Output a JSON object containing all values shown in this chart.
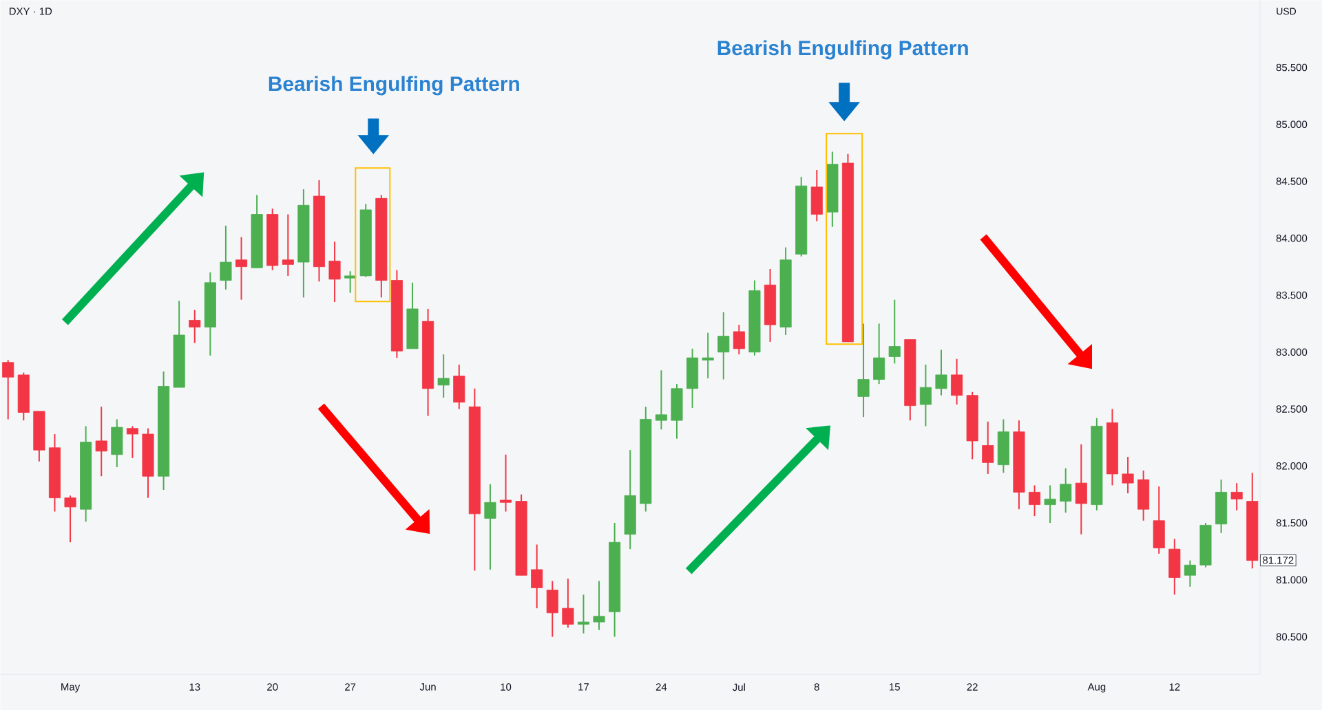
{
  "chart_data": {
    "type": "candlestick",
    "title": "DXY · 1D",
    "categories": [
      null,
      null,
      null,
      null,
      "May",
      null,
      null,
      null,
      null,
      null,
      null,
      null,
      "13",
      null,
      null,
      null,
      null,
      "20",
      null,
      null,
      null,
      null,
      "27",
      null,
      null,
      null,
      null,
      "Jun",
      null,
      null,
      null,
      null,
      "10",
      null,
      null,
      null,
      null,
      "17",
      null,
      null,
      null,
      null,
      "24",
      null,
      null,
      null,
      null,
      "Jul",
      null,
      null,
      null,
      null,
      "8",
      null,
      null,
      null,
      null,
      "15",
      null,
      null,
      null,
      null,
      "22",
      null,
      null,
      null,
      null,
      null,
      null,
      null,
      "Aug",
      null,
      null,
      null,
      null,
      "12",
      null,
      null,
      null,
      null,
      null
    ],
    "ohlc": [
      [
        82.91,
        82.93,
        82.41,
        82.78
      ],
      [
        82.8,
        82.82,
        82.4,
        82.47
      ],
      [
        82.48,
        82.48,
        82.04,
        82.14
      ],
      [
        82.16,
        82.28,
        81.6,
        81.72
      ],
      [
        81.72,
        81.74,
        81.33,
        81.64
      ],
      [
        81.62,
        82.35,
        81.51,
        82.21
      ],
      [
        82.22,
        82.52,
        81.91,
        82.13
      ],
      [
        82.1,
        82.41,
        81.99,
        82.34
      ],
      [
        82.33,
        82.35,
        82.07,
        82.28
      ],
      [
        82.28,
        82.33,
        81.72,
        81.91
      ],
      [
        81.91,
        82.83,
        81.79,
        82.7
      ],
      [
        82.69,
        83.45,
        82.69,
        83.15
      ],
      [
        83.28,
        83.37,
        83.08,
        83.22
      ],
      [
        83.22,
        83.7,
        82.97,
        83.61
      ],
      [
        83.63,
        84.11,
        83.55,
        83.79
      ],
      [
        83.81,
        84.01,
        83.46,
        83.75
      ],
      [
        83.74,
        84.38,
        83.74,
        84.21
      ],
      [
        84.21,
        84.26,
        83.72,
        83.76
      ],
      [
        83.81,
        84.21,
        83.67,
        83.77
      ],
      [
        83.79,
        84.43,
        83.48,
        84.29
      ],
      [
        84.37,
        84.51,
        83.62,
        83.75
      ],
      [
        83.8,
        83.97,
        83.44,
        83.64
      ],
      [
        83.65,
        83.71,
        83.52,
        83.67
      ],
      [
        83.67,
        84.3,
        83.66,
        84.25
      ],
      [
        84.35,
        84.38,
        83.48,
        83.63
      ],
      [
        83.63,
        83.72,
        82.95,
        83.01
      ],
      [
        83.03,
        83.61,
        83.03,
        83.38
      ],
      [
        83.27,
        83.38,
        82.44,
        82.68
      ],
      [
        82.71,
        82.98,
        82.6,
        82.77
      ],
      [
        82.79,
        82.89,
        82.5,
        82.56
      ],
      [
        82.52,
        82.68,
        81.08,
        81.58
      ],
      [
        81.54,
        81.84,
        81.09,
        81.68
      ],
      [
        81.7,
        82.1,
        81.6,
        81.68
      ],
      [
        81.69,
        81.75,
        81.04,
        81.04
      ],
      [
        81.09,
        81.31,
        80.75,
        80.93
      ],
      [
        80.91,
        80.99,
        80.5,
        80.71
      ],
      [
        80.75,
        81.01,
        80.58,
        80.61
      ],
      [
        80.61,
        80.87,
        80.53,
        80.63
      ],
      [
        80.63,
        80.99,
        80.56,
        80.68
      ],
      [
        80.72,
        81.5,
        80.5,
        81.33
      ],
      [
        81.4,
        82.14,
        81.27,
        81.74
      ],
      [
        81.67,
        82.52,
        81.6,
        82.41
      ],
      [
        82.4,
        82.84,
        82.32,
        82.45
      ],
      [
        82.4,
        82.72,
        82.24,
        82.68
      ],
      [
        82.68,
        83.03,
        82.51,
        82.95
      ],
      [
        82.93,
        83.17,
        82.77,
        82.95
      ],
      [
        83.0,
        83.35,
        82.76,
        83.14
      ],
      [
        83.18,
        83.24,
        82.98,
        83.03
      ],
      [
        83.0,
        83.63,
        82.97,
        83.54
      ],
      [
        83.59,
        83.73,
        83.09,
        83.24
      ],
      [
        83.22,
        83.92,
        83.15,
        83.81
      ],
      [
        83.86,
        84.54,
        83.84,
        84.46
      ],
      [
        84.45,
        84.6,
        84.15,
        84.21
      ],
      [
        84.23,
        84.76,
        84.1,
        84.65
      ],
      [
        84.66,
        84.74,
        83.09,
        83.09
      ],
      [
        82.61,
        83.25,
        82.43,
        82.76
      ],
      [
        82.76,
        83.25,
        82.72,
        82.95
      ],
      [
        82.96,
        83.46,
        82.9,
        83.05
      ],
      [
        83.11,
        83.11,
        82.4,
        82.53
      ],
      [
        82.54,
        82.89,
        82.35,
        82.69
      ],
      [
        82.68,
        83.02,
        82.62,
        82.8
      ],
      [
        82.8,
        82.94,
        82.54,
        82.62
      ],
      [
        82.62,
        82.65,
        82.06,
        82.22
      ],
      [
        82.18,
        82.39,
        81.93,
        82.03
      ],
      [
        82.01,
        82.41,
        81.94,
        82.3
      ],
      [
        82.3,
        82.4,
        81.62,
        81.77
      ],
      [
        81.77,
        81.83,
        81.56,
        81.66
      ],
      [
        81.66,
        81.83,
        81.5,
        81.71
      ],
      [
        81.69,
        81.98,
        81.59,
        81.84
      ],
      [
        81.85,
        82.19,
        81.4,
        81.67
      ],
      [
        81.66,
        82.42,
        81.61,
        82.35
      ],
      [
        82.38,
        82.5,
        81.83,
        81.93
      ],
      [
        81.93,
        82.08,
        81.76,
        81.85
      ],
      [
        81.88,
        81.96,
        81.52,
        81.62
      ],
      [
        81.52,
        81.82,
        81.23,
        81.28
      ],
      [
        81.27,
        81.36,
        80.87,
        81.02
      ],
      [
        81.04,
        81.17,
        80.94,
        81.13
      ],
      [
        81.13,
        81.5,
        81.11,
        81.48
      ],
      [
        81.49,
        81.88,
        81.41,
        81.77
      ],
      [
        81.77,
        81.85,
        81.61,
        81.71
      ],
      [
        81.69,
        81.94,
        81.1,
        81.17
      ]
    ],
    "ylim": [
      80.17,
      86.09
    ],
    "yticks": [
      {
        "value": 80.5,
        "label": "80.500"
      },
      {
        "value": 81,
        "label": "81.000"
      },
      {
        "value": 81.5,
        "label": "81.500"
      },
      {
        "value": 82,
        "label": "82.000"
      },
      {
        "value": 82.5,
        "label": "82.500"
      },
      {
        "value": 83,
        "label": "83.000"
      },
      {
        "value": 83.5,
        "label": "83.500"
      },
      {
        "value": 84,
        "label": "84.000"
      },
      {
        "value": 84.5,
        "label": "84.500"
      },
      {
        "value": 85,
        "label": "85.000"
      },
      {
        "value": 85.5,
        "label": "85.500"
      }
    ],
    "annotations": [
      "Bearish Engulfing Pattern",
      "Bearish Engulfing Pattern",
      "USD",
      {
        "text": "81.172",
        "y": 81.172
      }
    ]
  }
}
